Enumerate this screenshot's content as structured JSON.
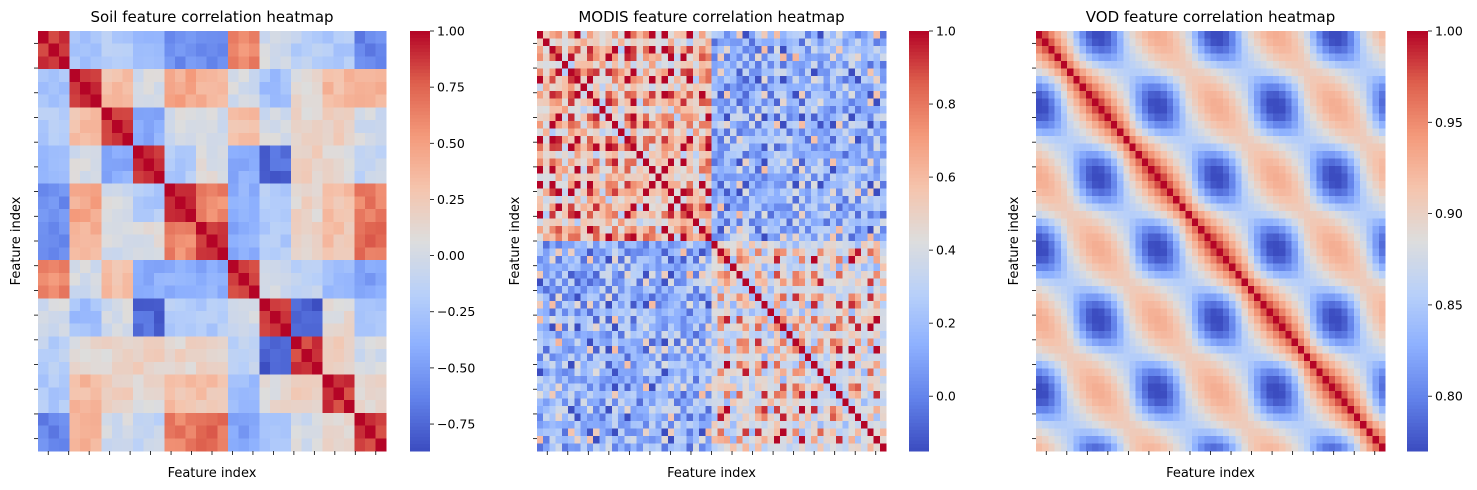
{
  "chart_data": [
    {
      "type": "heatmap",
      "title": "Soil feature correlation heatmap",
      "xlabel": "Feature index",
      "ylabel": "Feature index",
      "n": 33,
      "colormap": "coolwarm",
      "vmin": -0.87,
      "vmax": 1.0,
      "colorbar_ticks": [
        -0.75,
        -0.5,
        -0.25,
        0.0,
        0.25,
        0.5,
        0.75,
        1.0
      ],
      "colorbar_tick_labels": [
        "−0.75",
        "−0.50",
        "−0.25",
        "0.00",
        "0.25",
        "0.50",
        "0.75",
        "1.00"
      ],
      "block_sizes": [
        3,
        3,
        3,
        3,
        3,
        3,
        3,
        3,
        3,
        3,
        3
      ],
      "block_correlations": [
        [
          1.0,
          -0.25,
          -0.2,
          -0.3,
          -0.55,
          -0.6,
          0.6,
          0.0,
          -0.15,
          -0.2,
          -0.6
        ],
        [
          -0.25,
          1.0,
          0.3,
          0.0,
          0.45,
          0.4,
          0.0,
          -0.3,
          0.1,
          0.35,
          0.4
        ],
        [
          -0.2,
          0.3,
          1.0,
          -0.4,
          0.0,
          0.0,
          0.3,
          0.0,
          0.15,
          0.2,
          0.0
        ],
        [
          -0.3,
          0.0,
          -0.4,
          1.0,
          -0.2,
          0.05,
          -0.4,
          -0.75,
          0.2,
          0.1,
          -0.1
        ],
        [
          -0.55,
          0.45,
          0.0,
          -0.2,
          1.0,
          0.6,
          -0.4,
          -0.2,
          0.15,
          0.3,
          0.65
        ],
        [
          -0.6,
          0.4,
          0.0,
          0.05,
          0.6,
          1.0,
          -0.4,
          -0.2,
          0.2,
          0.3,
          0.7
        ],
        [
          0.6,
          0.0,
          0.3,
          -0.4,
          -0.4,
          -0.4,
          1.0,
          0.0,
          -0.1,
          -0.3,
          -0.45
        ],
        [
          0.0,
          -0.3,
          0.0,
          -0.75,
          -0.2,
          -0.2,
          0.0,
          1.0,
          -0.8,
          0.1,
          -0.2
        ],
        [
          -0.15,
          0.1,
          0.15,
          0.2,
          0.15,
          0.2,
          -0.1,
          -0.8,
          1.0,
          0.2,
          0.0
        ],
        [
          -0.2,
          0.35,
          0.2,
          0.1,
          0.3,
          0.3,
          -0.3,
          0.1,
          0.2,
          1.0,
          0.1
        ],
        [
          -0.6,
          0.4,
          0.0,
          -0.1,
          0.65,
          0.7,
          -0.45,
          -0.2,
          0.0,
          0.1,
          1.0
        ]
      ]
    },
    {
      "type": "heatmap",
      "title": "MODIS feature correlation heatmap",
      "xlabel": "Feature index",
      "ylabel": "Feature index",
      "n": 56,
      "colormap": "coolwarm",
      "vmin": -0.15,
      "vmax": 1.0,
      "colorbar_ticks": [
        0.0,
        0.2,
        0.4,
        0.6,
        0.8,
        1.0
      ],
      "colorbar_tick_labels": [
        "0.0",
        "0.2",
        "0.4",
        "0.6",
        "0.8",
        "1.0"
      ],
      "group_a_end": 28,
      "group_a_within": 0.8,
      "group_b_within": 0.62,
      "cross_groups": 0.2,
      "variation_amplitude": 0.3,
      "noise_feature_interval": 3
    },
    {
      "type": "heatmap",
      "title": "VOD feature correlation heatmap",
      "xlabel": "Feature index",
      "ylabel": "Feature index",
      "n": 56,
      "colormap": "coolwarm",
      "vmin": 0.77,
      "vmax": 1.0,
      "colorbar_ticks": [
        0.8,
        0.85,
        0.9,
        0.95,
        1.0
      ],
      "colorbar_tick_labels": [
        "0.80",
        "0.85",
        "0.90",
        "0.95",
        "1.00"
      ],
      "pattern_period": 19,
      "diagonal_decay": 0.035,
      "oscillation_amplitude": 0.07,
      "base_correlation": 0.88
    }
  ]
}
